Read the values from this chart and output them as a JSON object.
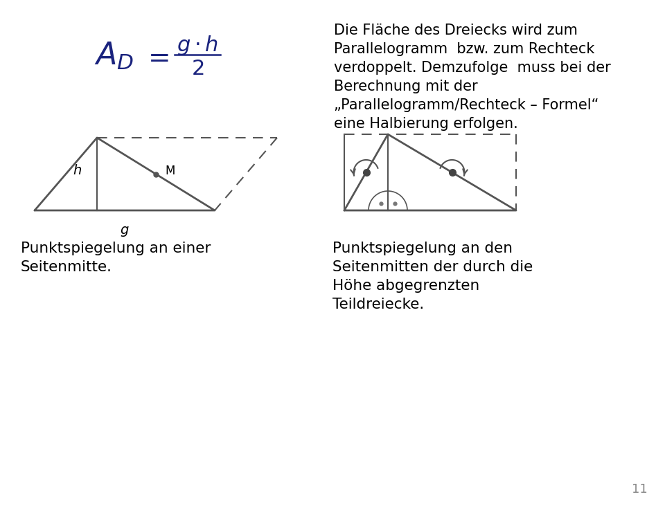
{
  "bg_color": "#ffffff",
  "text_color": "#000000",
  "formula_color": "#1a237e",
  "title_text1": "Die Fläche des Dreiecks wird zum",
  "title_text2": "Parallelogramm  bzw. zum Rechteck",
  "title_text3": "verdoppelt. Demzufolge  muss bei der",
  "title_text4": "Berechnung mit der",
  "title_text5": "„Parallelogramm/Rechteck – Formel“",
  "title_text6": "eine Halbierung erfolgen.",
  "caption1_line1": "Punktspiegelung an einer",
  "caption1_line2": "Seitenmitte.",
  "caption2_line1": "Punktspiegelung an den",
  "caption2_line2": "Seitenmitten der durch die",
  "caption2_line3": "Höhe abgegrenzten",
  "caption2_line4": "Teildreiecke.",
  "page_number": "11"
}
